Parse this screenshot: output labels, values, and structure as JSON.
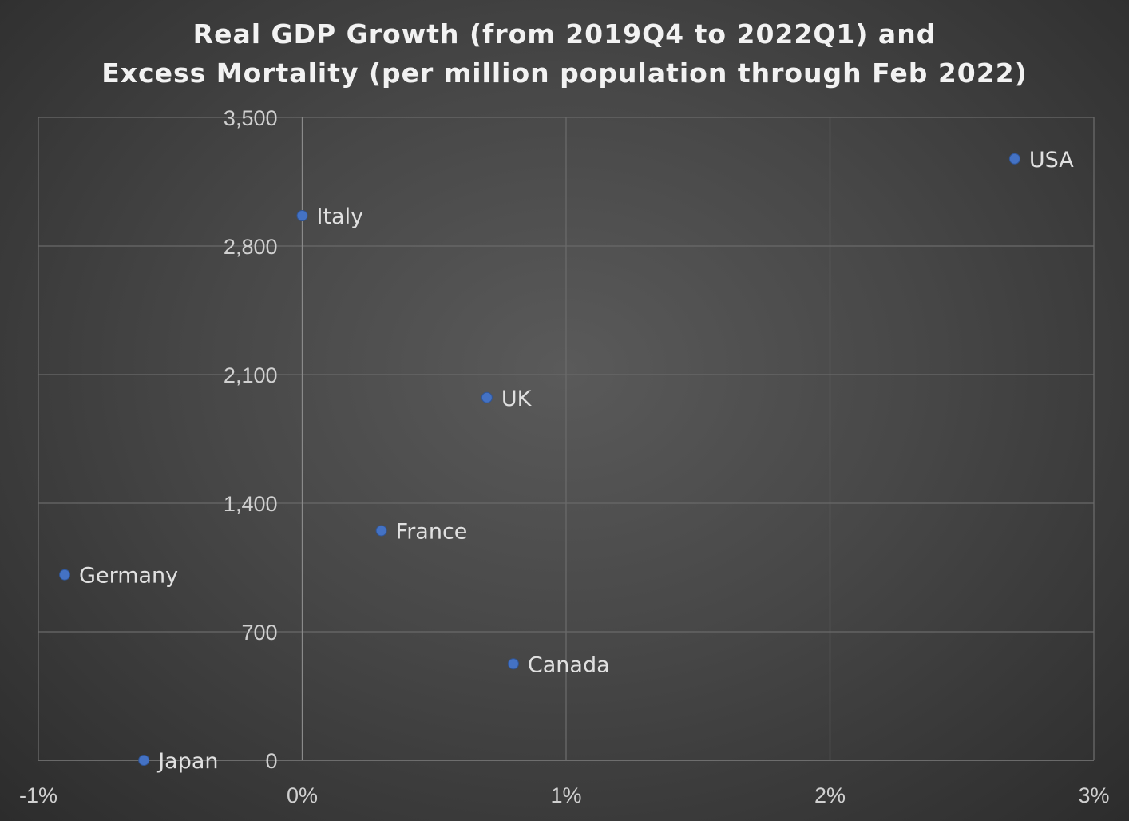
{
  "chart_data": {
    "type": "scatter",
    "title_line1": "Real GDP Growth (from 2019Q4 to 2022Q1) and",
    "title_line2": "Excess Mortality (per million population through Feb 2022)",
    "xlim": [
      -1,
      3
    ],
    "ylim": [
      0,
      3500
    ],
    "x_ticks": [
      -1,
      0,
      1,
      2,
      3
    ],
    "x_tick_labels": [
      "-1%",
      "0%",
      "1%",
      "2%",
      "3%"
    ],
    "y_ticks": [
      0,
      700,
      1400,
      2100,
      2800,
      3500
    ],
    "y_tick_labels": [
      "0",
      "700",
      "1,400",
      "2,100",
      "2,800",
      "3,500"
    ],
    "grid": true,
    "marker_color": "#4472C4",
    "points": [
      {
        "label": "USA",
        "x": 2.7,
        "y": 3275
      },
      {
        "label": "Italy",
        "x": 0.0,
        "y": 2965
      },
      {
        "label": "UK",
        "x": 0.7,
        "y": 1975
      },
      {
        "label": "France",
        "x": 0.3,
        "y": 1250
      },
      {
        "label": "Germany",
        "x": -0.9,
        "y": 1010
      },
      {
        "label": "Canada",
        "x": 0.8,
        "y": 525
      },
      {
        "label": "Japan",
        "x": -0.6,
        "y": 0
      }
    ]
  }
}
